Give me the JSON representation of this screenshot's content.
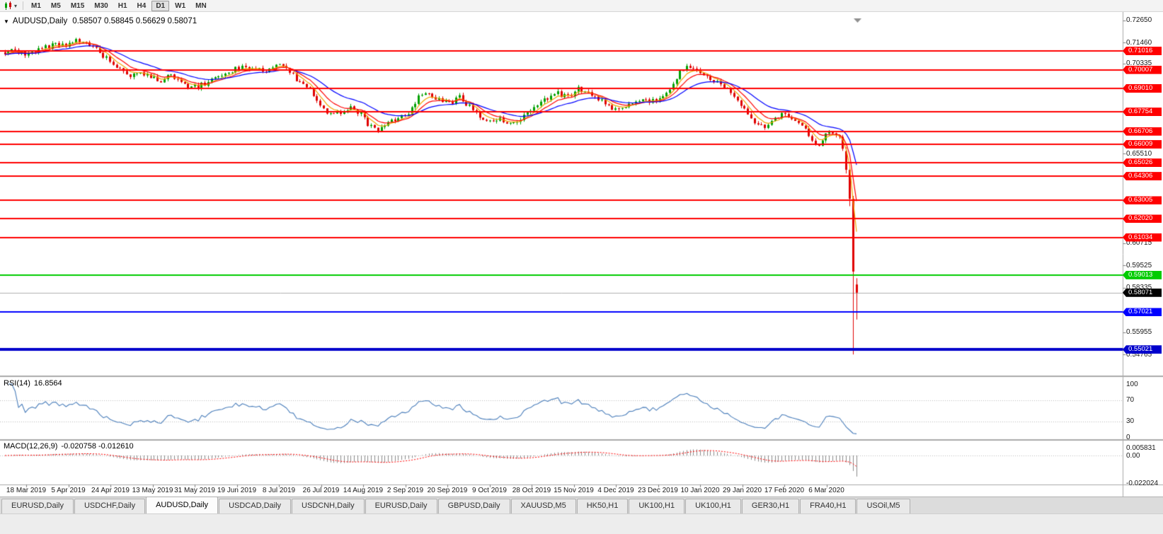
{
  "icons": {
    "dropdown_caret": "▾",
    "collapse_caret": "▼"
  },
  "toolbar": {
    "timeframes": [
      "M1",
      "M5",
      "M15",
      "M30",
      "H1",
      "H4",
      "D1",
      "W1",
      "MN"
    ],
    "active_timeframe": "D1"
  },
  "chart_header": {
    "symbol_period": "AUDUSD,Daily",
    "ohlc": "0.58507 0.58845 0.56629 0.58071"
  },
  "chart_data": {
    "type": "candlestick",
    "symbol": "AUDUSD",
    "period": "Daily",
    "current_ohlc": {
      "open": 0.58507,
      "high": 0.58845,
      "low": 0.56629,
      "close": 0.58071
    },
    "y_axis_ticks": [
      "0.72650",
      "0.71460",
      "0.70335",
      "0.65510",
      "0.60715",
      "0.59525",
      "0.58335",
      "0.55955",
      "0.54765"
    ],
    "x_axis_dates": [
      "18 Mar 2019",
      "5 Apr 2019",
      "24 Apr 2019",
      "13 May 2019",
      "31 May 2019",
      "19 Jun 2019",
      "8 Jul 2019",
      "26 Jul 2019",
      "14 Aug 2019",
      "2 Sep 2019",
      "20 Sep 2019",
      "9 Oct 2019",
      "28 Oct 2019",
      "15 Nov 2019",
      "4 Dec 2019",
      "23 Dec 2019",
      "10 Jan 2020",
      "29 Jan 2020",
      "17 Feb 2020",
      "6 Mar 2020"
    ],
    "horizontal_lines": [
      {
        "price": "0.71016",
        "color": "#ff0000",
        "width": 2
      },
      {
        "price": "0.70007",
        "color": "#ff0000",
        "width": 2
      },
      {
        "price": "0.69010",
        "color": "#ff0000",
        "width": 2
      },
      {
        "price": "0.67754",
        "color": "#ff0000",
        "width": 2
      },
      {
        "price": "0.66706",
        "color": "#ff0000",
        "width": 2
      },
      {
        "price": "0.66009",
        "color": "#ff0000",
        "width": 2
      },
      {
        "price": "0.65026",
        "color": "#ff0000",
        "width": 2
      },
      {
        "price": "0.64306",
        "color": "#ff0000",
        "width": 2
      },
      {
        "price": "0.63005",
        "color": "#ff0000",
        "width": 2
      },
      {
        "price": "0.62020",
        "color": "#ff0000",
        "width": 2
      },
      {
        "price": "0.61034",
        "color": "#ff0000",
        "width": 2
      },
      {
        "price": "0.59013",
        "color": "#00cc00",
        "width": 2
      },
      {
        "price": "0.57021",
        "color": "#0000ff",
        "width": 2
      },
      {
        "price": "0.55021",
        "color": "#0000cc",
        "width": 4
      }
    ],
    "current_price_tag": {
      "price": "0.58071",
      "color": "#000000"
    },
    "price_path_anchors": [
      [
        0,
        0.7095
      ],
      [
        3,
        0.7108
      ],
      [
        6,
        0.7082
      ],
      [
        9,
        0.71
      ],
      [
        12,
        0.7122
      ],
      [
        15,
        0.7135
      ],
      [
        18,
        0.7128
      ],
      [
        21,
        0.7152
      ],
      [
        23,
        0.7158
      ],
      [
        25,
        0.714
      ],
      [
        28,
        0.7095
      ],
      [
        31,
        0.7045
      ],
      [
        34,
        0.701
      ],
      [
        37,
        0.6972
      ],
      [
        40,
        0.6992
      ],
      [
        43,
        0.6958
      ],
      [
        46,
        0.6945
      ],
      [
        49,
        0.6978
      ],
      [
        52,
        0.694
      ],
      [
        55,
        0.6902
      ],
      [
        58,
        0.6918
      ],
      [
        61,
        0.6945
      ],
      [
        64,
        0.6975
      ],
      [
        67,
        0.6998
      ],
      [
        70,
        0.7018
      ],
      [
        73,
        0.7008
      ],
      [
        76,
        0.6992
      ],
      [
        79,
        0.7012
      ],
      [
        82,
        0.7024
      ],
      [
        84,
        0.6985
      ],
      [
        87,
        0.6935
      ],
      [
        90,
        0.6898
      ],
      [
        93,
        0.682
      ],
      [
        96,
        0.6758
      ],
      [
        99,
        0.6778
      ],
      [
        102,
        0.6792
      ],
      [
        105,
        0.6765
      ],
      [
        107,
        0.6705
      ],
      [
        110,
        0.6682
      ],
      [
        113,
        0.6718
      ],
      [
        116,
        0.6745
      ],
      [
        119,
        0.6772
      ],
      [
        122,
        0.6852
      ],
      [
        125,
        0.6878
      ],
      [
        128,
        0.6842
      ],
      [
        131,
        0.6815
      ],
      [
        134,
        0.6852
      ],
      [
        137,
        0.6802
      ],
      [
        140,
        0.6758
      ],
      [
        143,
        0.6722
      ],
      [
        146,
        0.6748
      ],
      [
        148,
        0.6702
      ],
      [
        151,
        0.6722
      ],
      [
        154,
        0.6762
      ],
      [
        157,
        0.6812
      ],
      [
        160,
        0.6845
      ],
      [
        163,
        0.6872
      ],
      [
        166,
        0.6855
      ],
      [
        169,
        0.6898
      ],
      [
        172,
        0.6882
      ],
      [
        175,
        0.6842
      ],
      [
        178,
        0.6802
      ],
      [
        181,
        0.6788
      ],
      [
        184,
        0.6812
      ],
      [
        187,
        0.6842
      ],
      [
        190,
        0.6822
      ],
      [
        193,
        0.685
      ],
      [
        196,
        0.69
      ],
      [
        199,
        0.699
      ],
      [
        201,
        0.7032
      ],
      [
        204,
        0.7
      ],
      [
        207,
        0.696
      ],
      [
        210,
        0.693
      ],
      [
        213,
        0.689
      ],
      [
        215,
        0.685
      ],
      [
        217,
        0.68
      ],
      [
        219,
        0.676
      ],
      [
        221,
        0.672
      ],
      [
        224,
        0.67
      ],
      [
        227,
        0.6745
      ],
      [
        229,
        0.6762
      ],
      [
        231,
        0.674
      ],
      [
        233,
        0.672
      ],
      [
        236,
        0.668
      ],
      [
        238,
        0.6625
      ],
      [
        240,
        0.66
      ],
      [
        242,
        0.666
      ],
      [
        244,
        0.6668
      ],
      [
        246,
        0.6645
      ],
      [
        247,
        0.658
      ],
      [
        248,
        0.6465
      ],
      [
        249,
        0.631
      ],
      [
        250,
        0.592
      ],
      [
        251,
        0.5807
      ]
    ],
    "final_candles": [
      {
        "o": 0.6565,
        "h": 0.6585,
        "l": 0.6445,
        "c": 0.6465
      },
      {
        "o": 0.6465,
        "h": 0.6478,
        "l": 0.627,
        "c": 0.631
      },
      {
        "o": 0.631,
        "h": 0.6325,
        "l": 0.5476,
        "c": 0.592
      },
      {
        "o": 0.58507,
        "h": 0.58845,
        "l": 0.56629,
        "c": 0.58071
      }
    ],
    "moving_averages": [
      {
        "period": 5,
        "color": "#f0a500",
        "type": "ema"
      },
      {
        "period": 9,
        "color": "#ff0000",
        "type": "ema"
      },
      {
        "period": 21,
        "color": "#0000ff",
        "type": "ema"
      }
    ],
    "indicators": {
      "rsi": {
        "name": "RSI(14)",
        "value_label": "16.8564",
        "levels": [
          100,
          70,
          30,
          0
        ],
        "line_color": "#4a7ebb"
      },
      "macd": {
        "name": "MACD(12,26,9)",
        "values_label": "-0.020758 -0.012610",
        "axis_labels": [
          {
            "text": "0.005831",
            "value": 0.005831
          },
          {
            "text": "0.00",
            "value": 0
          },
          {
            "text": "-0.022024",
            "value": -0.022024
          }
        ],
        "histogram_color": "#8a8a8a",
        "signal_color": "#ff0000"
      }
    },
    "colors": {
      "up": "#00a000",
      "down": "#e00000",
      "bid_line": "#b0b0b0",
      "background": "#ffffff"
    }
  },
  "tabs": {
    "items": [
      "EURUSD,Daily",
      "USDCHF,Daily",
      "AUDUSD,Daily",
      "USDCAD,Daily",
      "USDCNH,Daily",
      "EURUSD,Daily",
      "GBPUSD,Daily",
      "XAUUSD,M5",
      "HK50,H1",
      "UK100,H1",
      "UK100,H1",
      "GER30,H1",
      "FRA40,H1",
      "USOil,M5"
    ],
    "active_index": 2
  }
}
